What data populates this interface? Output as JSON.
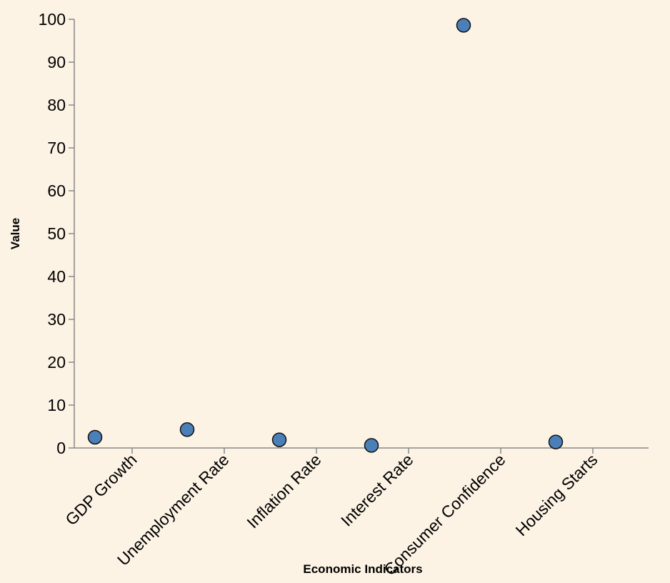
{
  "chart_data": {
    "type": "scatter",
    "xlabel": "Economic Indicators",
    "ylabel": "Value",
    "categories": [
      "GDP Growth",
      "Unemployment Rate",
      "Inflation Rate",
      "Interest Rate",
      "Consumer Confidence",
      "Housing Starts"
    ],
    "points": [
      {
        "category": "GDP Growth",
        "value": 2.5
      },
      {
        "category": "Unemployment Rate",
        "value": 4.3
      },
      {
        "category": "Inflation Rate",
        "value": 1.9
      },
      {
        "category": "Interest Rate",
        "value": 0.6
      },
      {
        "category": "Consumer Confidence",
        "value": 98.6
      },
      {
        "category": "Housing Starts",
        "value": 1.4
      }
    ],
    "ylim": [
      0,
      100
    ],
    "yticks": [
      0,
      10,
      20,
      30,
      40,
      50,
      60,
      70,
      80,
      90,
      100
    ],
    "grid": false,
    "colors": {
      "background": "#fdf3e5",
      "point_fill": "#4a7fb8",
      "point_stroke": "#111111",
      "axis": "#888888"
    }
  }
}
